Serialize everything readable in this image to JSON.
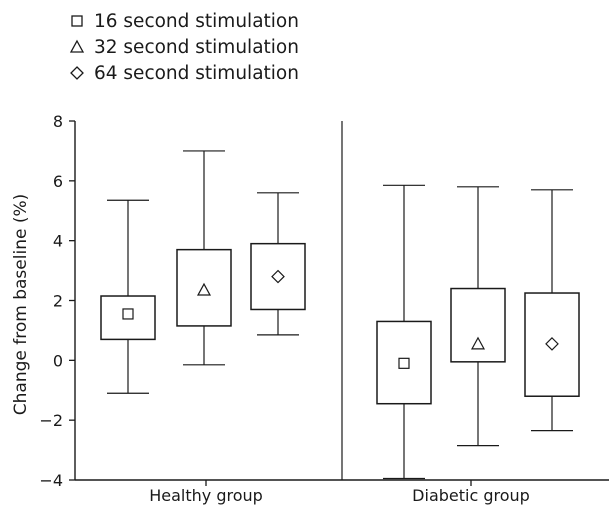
{
  "chart_data": {
    "type": "boxplot",
    "title": "",
    "xlabel": "",
    "ylabel": "Change from baseline (%)",
    "ylim": [
      -4,
      8
    ],
    "yticks": [
      "-4",
      "-2",
      "0",
      "2",
      "4",
      "6",
      "8"
    ],
    "grid": false,
    "legend_position": "top-left",
    "categories": [
      "Healthy group",
      "Diabetic group"
    ],
    "series": [
      {
        "name": "16 second stimulation",
        "marker": "square",
        "boxes": [
          {
            "category": "Healthy group",
            "whisker_low": -1.1,
            "q1": 0.7,
            "median": 1.55,
            "q3": 2.15,
            "whisker_high": 5.35
          },
          {
            "category": "Diabetic group",
            "whisker_low": -3.95,
            "q1": -1.45,
            "median": -0.1,
            "q3": 1.3,
            "whisker_high": 5.85
          }
        ]
      },
      {
        "name": "32 second stimulation",
        "marker": "triangle",
        "boxes": [
          {
            "category": "Healthy group",
            "whisker_low": -0.15,
            "q1": 1.15,
            "median": 2.35,
            "q3": 3.7,
            "whisker_high": 7.0
          },
          {
            "category": "Diabetic group",
            "whisker_low": -2.85,
            "q1": -0.05,
            "median": 0.55,
            "q3": 2.4,
            "whisker_high": 5.8
          }
        ]
      },
      {
        "name": "64 second stimulation",
        "marker": "diamond",
        "boxes": [
          {
            "category": "Healthy group",
            "whisker_low": 0.85,
            "q1": 1.7,
            "median": 2.8,
            "q3": 3.9,
            "whisker_high": 5.6
          },
          {
            "category": "Diabetic group",
            "whisker_low": -2.35,
            "q1": -1.2,
            "median": 0.55,
            "q3": 2.25,
            "whisker_high": 5.7
          }
        ]
      }
    ]
  }
}
